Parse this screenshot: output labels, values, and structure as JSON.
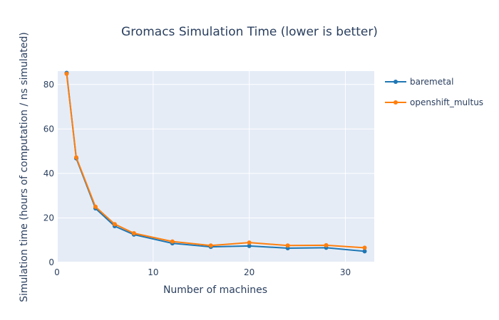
{
  "chart_data": {
    "type": "line",
    "title": "Gromacs Simulation Time (lower is better)",
    "xlabel": "Number of machines",
    "ylabel": "Simulation time (hours of computation / ns simulated)",
    "xlim": [
      0,
      33
    ],
    "ylim": [
      0,
      86
    ],
    "xticks": [
      0,
      10,
      20,
      30
    ],
    "yticks": [
      0,
      20,
      40,
      60,
      80
    ],
    "grid": true,
    "legend_position": "right",
    "background": "#e5ecf6",
    "x": [
      1,
      2,
      4,
      6,
      8,
      12,
      16,
      20,
      24,
      28,
      32
    ],
    "series": [
      {
        "name": "baremetal",
        "color": "#1f77b4",
        "values": [
          85.2,
          46.8,
          24.3,
          16.3,
          12.5,
          8.6,
          7.0,
          7.4,
          6.4,
          6.6,
          5.0
        ]
      },
      {
        "name": "openshift_multus",
        "color": "#ff7f0e",
        "values": [
          84.8,
          47.2,
          25.0,
          17.2,
          13.1,
          9.4,
          7.6,
          8.9,
          7.6,
          7.7,
          6.6
        ]
      }
    ]
  }
}
